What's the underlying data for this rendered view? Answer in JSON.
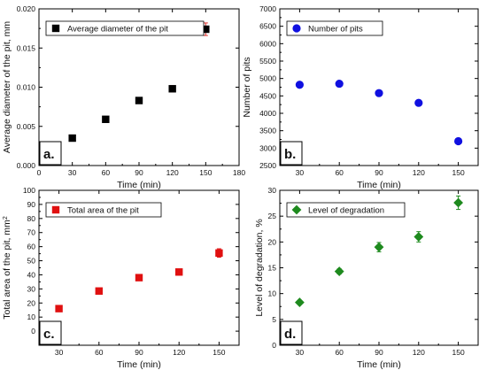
{
  "chart_data": [
    {
      "type": "scatter",
      "panel_label": "a.",
      "xlabel": "Time (min)",
      "ylabel": "Average diameter of the pit, mm",
      "xlim": [
        0,
        180
      ],
      "ylim": [
        0,
        0.02
      ],
      "xticks": [
        0,
        30,
        60,
        90,
        120,
        150,
        180
      ],
      "yticks": [
        0.0,
        0.005,
        0.01,
        0.015,
        0.02
      ],
      "ytick_labels": [
        "0.000",
        "0.005",
        "0.010",
        "0.015",
        "0.020"
      ],
      "legend": "top-left",
      "series": [
        {
          "name": "Average diameter of the pit",
          "marker": "square",
          "color": "#000000",
          "error_color": "#e0302a",
          "x": [
            30,
            60,
            90,
            120,
            150
          ],
          "y": [
            0.0035,
            0.0059,
            0.0083,
            0.0098,
            0.0174
          ],
          "error": [
            0.0002,
            0.0002,
            0.0003,
            0.0004,
            0.0008
          ]
        }
      ]
    },
    {
      "type": "scatter",
      "panel_label": "b.",
      "xlabel": "Time (min)",
      "ylabel": "Number of pits",
      "xlim": [
        15,
        165
      ],
      "ylim": [
        2500,
        7000
      ],
      "xticks": [
        30,
        60,
        90,
        120,
        150
      ],
      "yticks": [
        2500,
        3000,
        3500,
        4000,
        4500,
        5000,
        5500,
        6000,
        6500,
        7000
      ],
      "legend": "top-left",
      "series": [
        {
          "name": "Number of pits",
          "marker": "circle",
          "color": "#1010e0",
          "x": [
            30,
            60,
            90,
            120,
            150
          ],
          "y": [
            4820,
            4850,
            4580,
            4300,
            3200
          ]
        }
      ]
    },
    {
      "type": "scatter",
      "panel_label": "c.",
      "xlabel": "Time (min)",
      "ylabel": "Total area of the pit, mm",
      "ylabel_sup": "2",
      "xlim": [
        15,
        165
      ],
      "ylim": [
        -10,
        100
      ],
      "xticks": [
        30,
        60,
        90,
        120,
        150
      ],
      "yticks": [
        0,
        10,
        20,
        30,
        40,
        50,
        60,
        70,
        80,
        90,
        100
      ],
      "legend": "top-left",
      "series": [
        {
          "name": "Total area of the pit",
          "marker": "square",
          "color": "#e01010",
          "x": [
            30,
            60,
            90,
            120,
            150
          ],
          "y": [
            16,
            28.5,
            38,
            42,
            55.5
          ],
          "error": [
            1,
            1.5,
            2,
            2,
            3
          ]
        }
      ]
    },
    {
      "type": "scatter",
      "panel_label": "d.",
      "xlabel": "Time (min)",
      "ylabel": "Level of degradation, %",
      "xlim": [
        15,
        165
      ],
      "ylim": [
        0,
        30
      ],
      "xticks": [
        30,
        60,
        90,
        120,
        150
      ],
      "yticks": [
        0,
        5,
        10,
        15,
        20,
        25,
        30
      ],
      "legend": "top-left",
      "series": [
        {
          "name": "Level of degradation",
          "marker": "diamond",
          "color": "#1e8a1e",
          "x": [
            30,
            60,
            90,
            120,
            150
          ],
          "y": [
            8.3,
            14.3,
            19,
            21,
            27.6
          ],
          "error": [
            0.3,
            0.5,
            0.9,
            1.0,
            1.3
          ]
        }
      ]
    }
  ]
}
